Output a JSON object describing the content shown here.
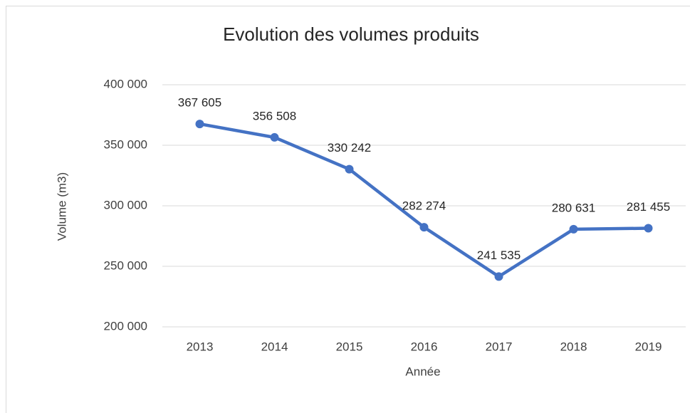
{
  "chart_data": {
    "type": "line",
    "title": "Evolution des volumes produits",
    "x_label": "Année",
    "y_label": "Volume (m3)",
    "categories": [
      "2013",
      "2014",
      "2015",
      "2016",
      "2017",
      "2018",
      "2019"
    ],
    "series": [
      {
        "name": "Volume",
        "color": "#4472c4",
        "values": [
          367605,
          356508,
          330242,
          282274,
          241535,
          280631,
          281455
        ],
        "value_labels": [
          "367 605",
          "356 508",
          "330 242",
          "282 274",
          "241 535",
          "280 631",
          "281 455"
        ]
      }
    ],
    "ylim": [
      200000,
      400000
    ],
    "yticks": [
      {
        "value": 200000,
        "label": "200 000"
      },
      {
        "value": 250000,
        "label": "250 000"
      },
      {
        "value": 300000,
        "label": "300 000"
      },
      {
        "value": 350000,
        "label": "350 000"
      },
      {
        "value": 400000,
        "label": "400 000"
      }
    ],
    "grid": true
  }
}
